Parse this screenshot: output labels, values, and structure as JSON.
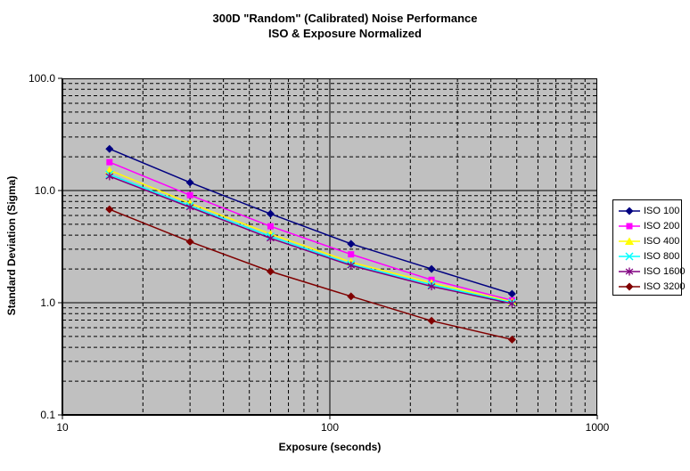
{
  "title": {
    "line1": "300D \"Random\" (Calibrated) Noise Performance",
    "line2": "ISO & Exposure Normalized"
  },
  "axes": {
    "x": {
      "label": "Exposure (seconds)",
      "scale": "log",
      "min": 10,
      "max": 1000,
      "tick_labels": [
        "10",
        "100",
        "1000"
      ],
      "tick_values": [
        10,
        100,
        1000
      ]
    },
    "y": {
      "label": "Standard Deviation (Sigma)",
      "scale": "log",
      "min": 0.1,
      "max": 100,
      "tick_labels": [
        "100.0",
        "10.0",
        "1.0",
        "0.1"
      ],
      "tick_values": [
        100,
        10,
        1,
        0.1
      ]
    }
  },
  "colors": {
    "background": "#FFFFFF",
    "plot_background": "#C0C0C0",
    "gridline": "#000000",
    "axis": "#000000",
    "legend_border": "#000000",
    "legend_background": "#FFFFFF"
  },
  "legend": {
    "position": "right"
  },
  "chart_data": {
    "type": "line",
    "title": "300D \"Random\" (Calibrated) Noise Performance — ISO & Exposure Normalized",
    "xlabel": "Exposure (seconds)",
    "ylabel": "Standard Deviation (Sigma)",
    "x_scale": "log",
    "y_scale": "log",
    "xlim": [
      10,
      1000
    ],
    "ylim": [
      0.1,
      100
    ],
    "grid": "major solid, minor dashed, log decades",
    "legend_position": "right",
    "x": [
      15,
      30,
      60,
      120,
      240,
      480
    ],
    "series": [
      {
        "name": "ISO 100",
        "color": "#000080",
        "marker": "diamond",
        "values": [
          23.5,
          11.8,
          6.2,
          3.35,
          2.0,
          1.2
        ]
      },
      {
        "name": "ISO 200",
        "color": "#FF00FF",
        "marker": "square",
        "values": [
          17.9,
          9.1,
          4.8,
          2.7,
          1.6,
          1.05
        ]
      },
      {
        "name": "ISO 400",
        "color": "#FFFF00",
        "marker": "triangle",
        "values": [
          15.2,
          7.7,
          4.1,
          2.3,
          1.5,
          1.02
        ]
      },
      {
        "name": "ISO 800",
        "color": "#00FFFF",
        "marker": "x",
        "values": [
          13.9,
          7.3,
          3.9,
          2.2,
          1.45,
          1.0
        ]
      },
      {
        "name": "ISO 1600",
        "color": "#800080",
        "marker": "asterisk",
        "values": [
          13.4,
          7.1,
          3.75,
          2.15,
          1.4,
          0.98
        ]
      },
      {
        "name": "ISO 3200",
        "color": "#800000",
        "marker": "diamond",
        "values": [
          6.8,
          3.5,
          1.9,
          1.14,
          0.69,
          0.47
        ]
      }
    ]
  }
}
